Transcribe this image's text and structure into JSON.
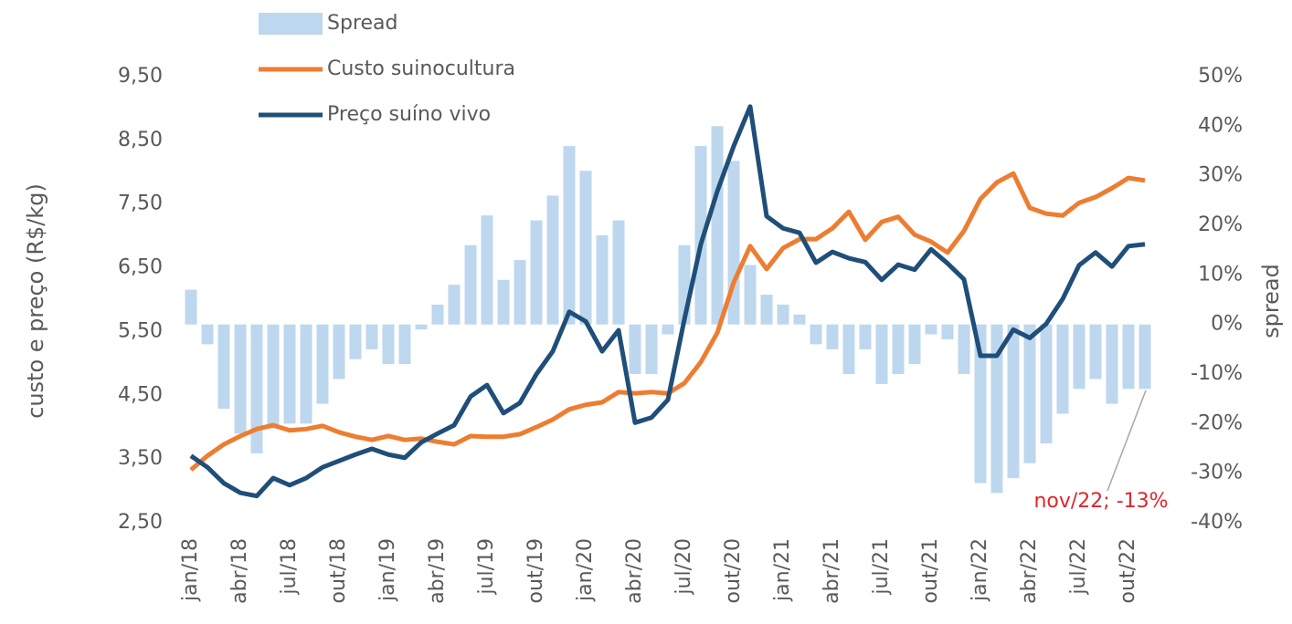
{
  "chart_data": {
    "type": "bar",
    "y_label": "custo e preço (R$/kg)",
    "y2_label": "spread",
    "annotation": "nov/22; -13%",
    "categories": [
      "jan/18",
      null,
      null,
      "abr/18",
      null,
      null,
      "jul/18",
      null,
      null,
      "out/18",
      null,
      null,
      "jan/19",
      null,
      null,
      "abr/19",
      null,
      null,
      "jul/19",
      null,
      null,
      "out/19",
      null,
      null,
      "jan/20",
      null,
      null,
      "abr/20",
      null,
      null,
      "jul/20",
      null,
      null,
      "out/20",
      null,
      null,
      "jan/21",
      null,
      null,
      "abr/21",
      null,
      null,
      "jul/21",
      null,
      null,
      "out/21",
      null,
      null,
      "jan/22",
      null,
      null,
      "abr/22",
      null,
      null,
      "jul/22",
      null,
      null,
      "out/22",
      null
    ],
    "series": [
      {
        "name": "Spread",
        "type": "bar",
        "axis": "y2",
        "color": "#bdd7ee",
        "values": [
          7,
          -4,
          -17,
          -22,
          -26,
          -21,
          -20,
          -20,
          -16,
          -11,
          -7,
          -5,
          -8,
          -8,
          -1,
          4,
          8,
          16,
          22,
          9,
          13,
          21,
          26,
          36,
          31,
          18,
          21,
          -10,
          -10,
          -2,
          16,
          36,
          40,
          33,
          12,
          6,
          4,
          2,
          -4,
          -5,
          -10,
          -5,
          -12,
          -10,
          -8,
          -2,
          -3,
          -10,
          -32,
          -34,
          -31,
          -28,
          -24,
          -18,
          -13,
          -11,
          -16,
          -13,
          -13
        ]
      },
      {
        "name": "Custo suinocultura",
        "type": "line",
        "color": "#ed7d31",
        "values": [
          3.33,
          3.55,
          3.73,
          3.86,
          3.97,
          4.03,
          3.95,
          3.97,
          4.02,
          3.92,
          3.85,
          3.8,
          3.86,
          3.8,
          3.82,
          3.77,
          3.73,
          3.86,
          3.85,
          3.85,
          3.89,
          4.0,
          4.12,
          4.28,
          4.35,
          4.39,
          4.55,
          4.53,
          4.55,
          4.53,
          4.69,
          5.02,
          5.48,
          6.27,
          6.84,
          6.48,
          6.81,
          6.95,
          6.95,
          7.12,
          7.38,
          6.94,
          7.22,
          7.3,
          7.02,
          6.91,
          6.74,
          7.08,
          7.58,
          7.84,
          7.98,
          7.44,
          7.35,
          7.32,
          7.52,
          7.61,
          7.75,
          7.91,
          7.87
        ]
      },
      {
        "name": "Preço suíno vivo",
        "type": "line",
        "color": "#1f4e79",
        "values": [
          3.55,
          3.37,
          3.12,
          2.97,
          2.92,
          3.2,
          3.09,
          3.2,
          3.37,
          3.47,
          3.57,
          3.66,
          3.57,
          3.52,
          3.76,
          3.9,
          4.03,
          4.48,
          4.66,
          4.22,
          4.38,
          4.83,
          5.19,
          5.81,
          5.66,
          5.19,
          5.52,
          4.07,
          4.15,
          4.43,
          5.69,
          6.87,
          7.7,
          8.41,
          9.03,
          7.31,
          7.12,
          7.05,
          6.58,
          6.75,
          6.65,
          6.59,
          6.31,
          6.55,
          6.47,
          6.79,
          6.57,
          6.32,
          5.12,
          5.12,
          5.53,
          5.4,
          5.62,
          6.01,
          6.54,
          6.74,
          6.52,
          6.84,
          6.87
        ]
      }
    ],
    "ylim": [
      2.5,
      9.5
    ],
    "yticks": [
      {
        "value": 2.5,
        "label": "2,50"
      },
      {
        "value": 3.5,
        "label": "3,50"
      },
      {
        "value": 4.5,
        "label": "4,50"
      },
      {
        "value": 5.5,
        "label": "5,50"
      },
      {
        "value": 6.5,
        "label": "6,50"
      },
      {
        "value": 7.5,
        "label": "7,50"
      },
      {
        "value": 8.5,
        "label": "8,50"
      },
      {
        "value": 9.5,
        "label": "9,50"
      }
    ],
    "y2lim": [
      -40,
      50
    ],
    "y2ticks": [
      {
        "value": -40,
        "label": "-40%"
      },
      {
        "value": -30,
        "label": "-30%"
      },
      {
        "value": -20,
        "label": "-20%"
      },
      {
        "value": -10,
        "label": "-10%"
      },
      {
        "value": 0,
        "label": "0%"
      },
      {
        "value": 10,
        "label": "10%"
      },
      {
        "value": 20,
        "label": "20%"
      },
      {
        "value": 30,
        "label": "30%"
      },
      {
        "value": 40,
        "label": "40%"
      },
      {
        "value": 50,
        "label": "50%"
      }
    ],
    "grid": false
  }
}
